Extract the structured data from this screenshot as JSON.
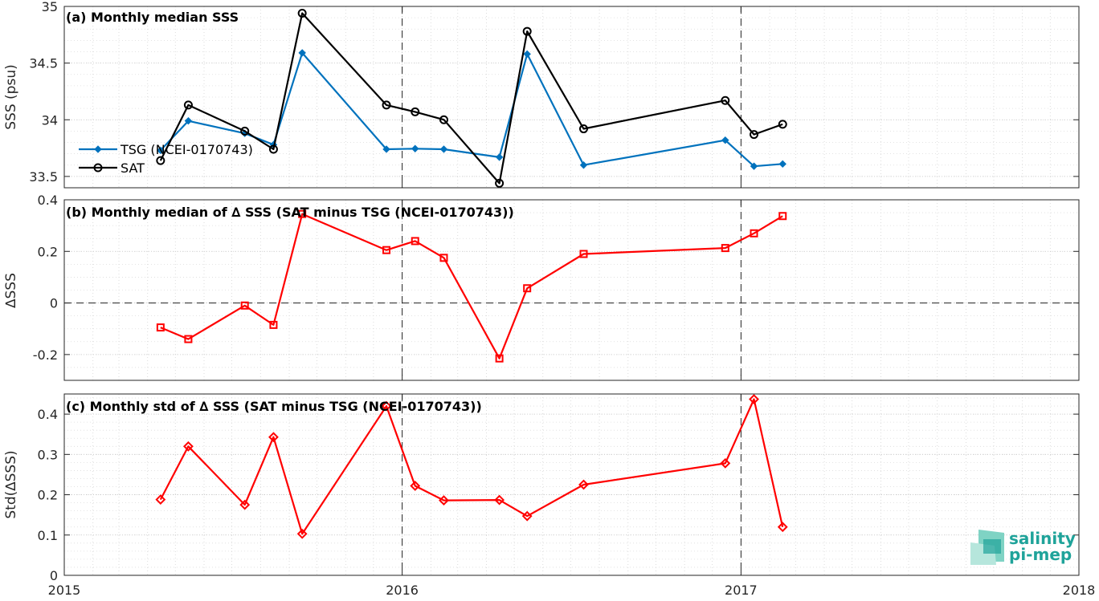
{
  "colors": {
    "tsg": "#0072BD",
    "sat": "#000000",
    "delta": "#ff0000",
    "logo": "#1fa39a"
  },
  "logo": {
    "line1": "salinity",
    "line2": "pi-mep"
  },
  "chart_data": [
    {
      "type": "line",
      "title": "(a) Monthly median SSS",
      "xlabel": "",
      "ylabel": "SSS (psu)",
      "xlim": [
        "2015-01-01",
        "2018-01-01"
      ],
      "x_ticks": [
        "2015",
        "2016",
        "2017",
        "2018"
      ],
      "ylim": [
        33.4,
        35
      ],
      "y_ticks": [
        "33.5",
        "34",
        "34.5",
        "35"
      ],
      "legend_position": "middle-left",
      "grid": true,
      "series": [
        {
          "name": "TSG (NCEI-0170743)",
          "marker": "diamond",
          "x": [
            "2015-04-15",
            "2015-05-15",
            "2015-07-15",
            "2015-08-15",
            "2015-09-15",
            "2015-12-15",
            "2016-01-15",
            "2016-02-15",
            "2016-04-15",
            "2016-05-15",
            "2016-07-15",
            "2016-12-15",
            "2017-01-15",
            "2017-02-15"
          ],
          "values": [
            33.73,
            33.99,
            33.88,
            33.78,
            34.59,
            33.74,
            33.745,
            33.74,
            33.67,
            34.58,
            33.6,
            33.82,
            33.59,
            33.61
          ]
        },
        {
          "name": "SAT",
          "marker": "circle",
          "x": [
            "2015-04-15",
            "2015-05-15",
            "2015-07-15",
            "2015-08-15",
            "2015-09-15",
            "2015-12-15",
            "2016-01-15",
            "2016-02-15",
            "2016-04-15",
            "2016-05-15",
            "2016-07-15",
            "2016-12-15",
            "2017-01-15",
            "2017-02-15"
          ],
          "values": [
            33.64,
            34.13,
            33.9,
            33.74,
            34.94,
            34.13,
            34.07,
            34.0,
            33.44,
            34.78,
            33.92,
            34.17,
            33.87,
            33.96
          ]
        }
      ]
    },
    {
      "type": "line",
      "title": "(b) Monthly median of ∆ SSS (SAT minus TSG (NCEI-0170743))",
      "xlabel": "",
      "ylabel": "∆SSS",
      "xlim": [
        "2015-01-01",
        "2018-01-01"
      ],
      "x_ticks": [
        "2015",
        "2016",
        "2017",
        "2018"
      ],
      "ylim": [
        -0.3,
        0.4
      ],
      "y_ticks": [
        "-0.2",
        "0",
        "0.2",
        "0.4"
      ],
      "grid": true,
      "series": [
        {
          "marker": "square",
          "x": [
            "2015-04-15",
            "2015-05-15",
            "2015-07-15",
            "2015-08-15",
            "2015-09-15",
            "2015-12-15",
            "2016-01-15",
            "2016-02-15",
            "2016-04-15",
            "2016-05-15",
            "2016-07-15",
            "2016-12-15",
            "2017-01-15",
            "2017-02-15"
          ],
          "values": [
            -0.095,
            -0.14,
            -0.01,
            -0.085,
            0.345,
            0.205,
            0.24,
            0.175,
            -0.215,
            0.057,
            0.19,
            0.213,
            0.27,
            0.337
          ]
        }
      ]
    },
    {
      "type": "line",
      "title": "(c) Monthly std of ∆ SSS (SAT minus TSG (NCEI-0170743))",
      "xlabel": "",
      "ylabel": "Std(∆SSS)",
      "xlim": [
        "2015-01-01",
        "2018-01-01"
      ],
      "x_ticks": [
        "2015",
        "2016",
        "2017",
        "2018"
      ],
      "ylim": [
        0,
        0.45
      ],
      "y_ticks": [
        "0",
        "0.1",
        "0.2",
        "0.3",
        "0.4"
      ],
      "grid": true,
      "series": [
        {
          "marker": "diamond-open",
          "x": [
            "2015-04-15",
            "2015-05-15",
            "2015-07-15",
            "2015-08-15",
            "2015-09-15",
            "2015-12-15",
            "2016-01-15",
            "2016-02-15",
            "2016-04-15",
            "2016-05-15",
            "2016-07-15",
            "2016-12-15",
            "2017-01-15",
            "2017-02-15"
          ],
          "values": [
            0.188,
            0.32,
            0.175,
            0.343,
            0.103,
            0.42,
            0.222,
            0.186,
            0.187,
            0.147,
            0.225,
            0.278,
            0.437,
            0.12
          ]
        }
      ]
    }
  ]
}
